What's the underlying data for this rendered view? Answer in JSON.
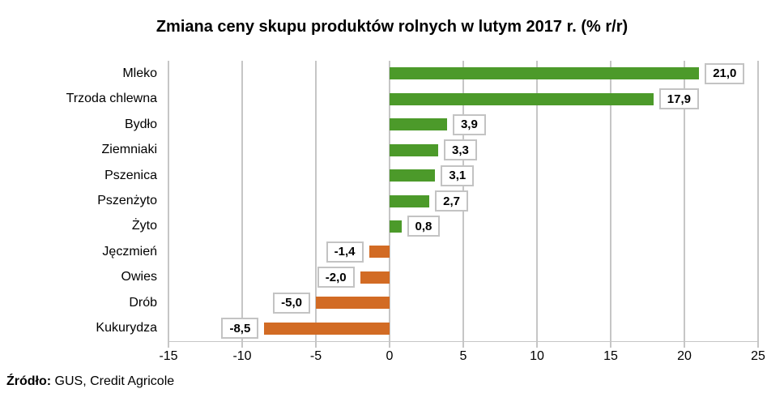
{
  "title": "Zmiana ceny skupu produktów rolnych w lutym 2017 r. (% r/r)",
  "source": {
    "label": "Źródło:",
    "text": " GUS, Credit Agricole"
  },
  "colors": {
    "positive_bar": "#4c9a2a",
    "negative_bar": "#d26b24",
    "gridline": "#c6c6c6",
    "value_box_border": "#c3c3c3",
    "value_box_fill": "#ffffff",
    "text": "#000000"
  },
  "chart_data": {
    "type": "bar",
    "orientation": "horizontal",
    "title": "Zmiana ceny skupu produktów rolnych w lutym 2017 r. (% r/r)",
    "categories": [
      "Mleko",
      "Trzoda chlewna",
      "Bydło",
      "Ziemniaki",
      "Pszenica",
      "Pszenżyto",
      "Żyto",
      "Jęczmień",
      "Owies",
      "Drób",
      "Kukurydza"
    ],
    "values": [
      21.0,
      17.9,
      3.9,
      3.3,
      3.1,
      2.7,
      0.8,
      -1.4,
      -2.0,
      -5.0,
      -8.5
    ],
    "value_labels": [
      "21,0",
      "17,9",
      "3,9",
      "3,3",
      "3,1",
      "2,7",
      "0,8",
      "-1,4",
      "-2,0",
      "-5,0",
      "-8,5"
    ],
    "xlim": [
      -15,
      25
    ],
    "xticks": [
      -15,
      -10,
      -5,
      0,
      5,
      10,
      15,
      20,
      25
    ],
    "xtick_labels": [
      "-15",
      "-10",
      "-5",
      "0",
      "5",
      "10",
      "15",
      "20",
      "25"
    ],
    "xlabel": "",
    "ylabel": "",
    "grid": true,
    "legend": false
  }
}
